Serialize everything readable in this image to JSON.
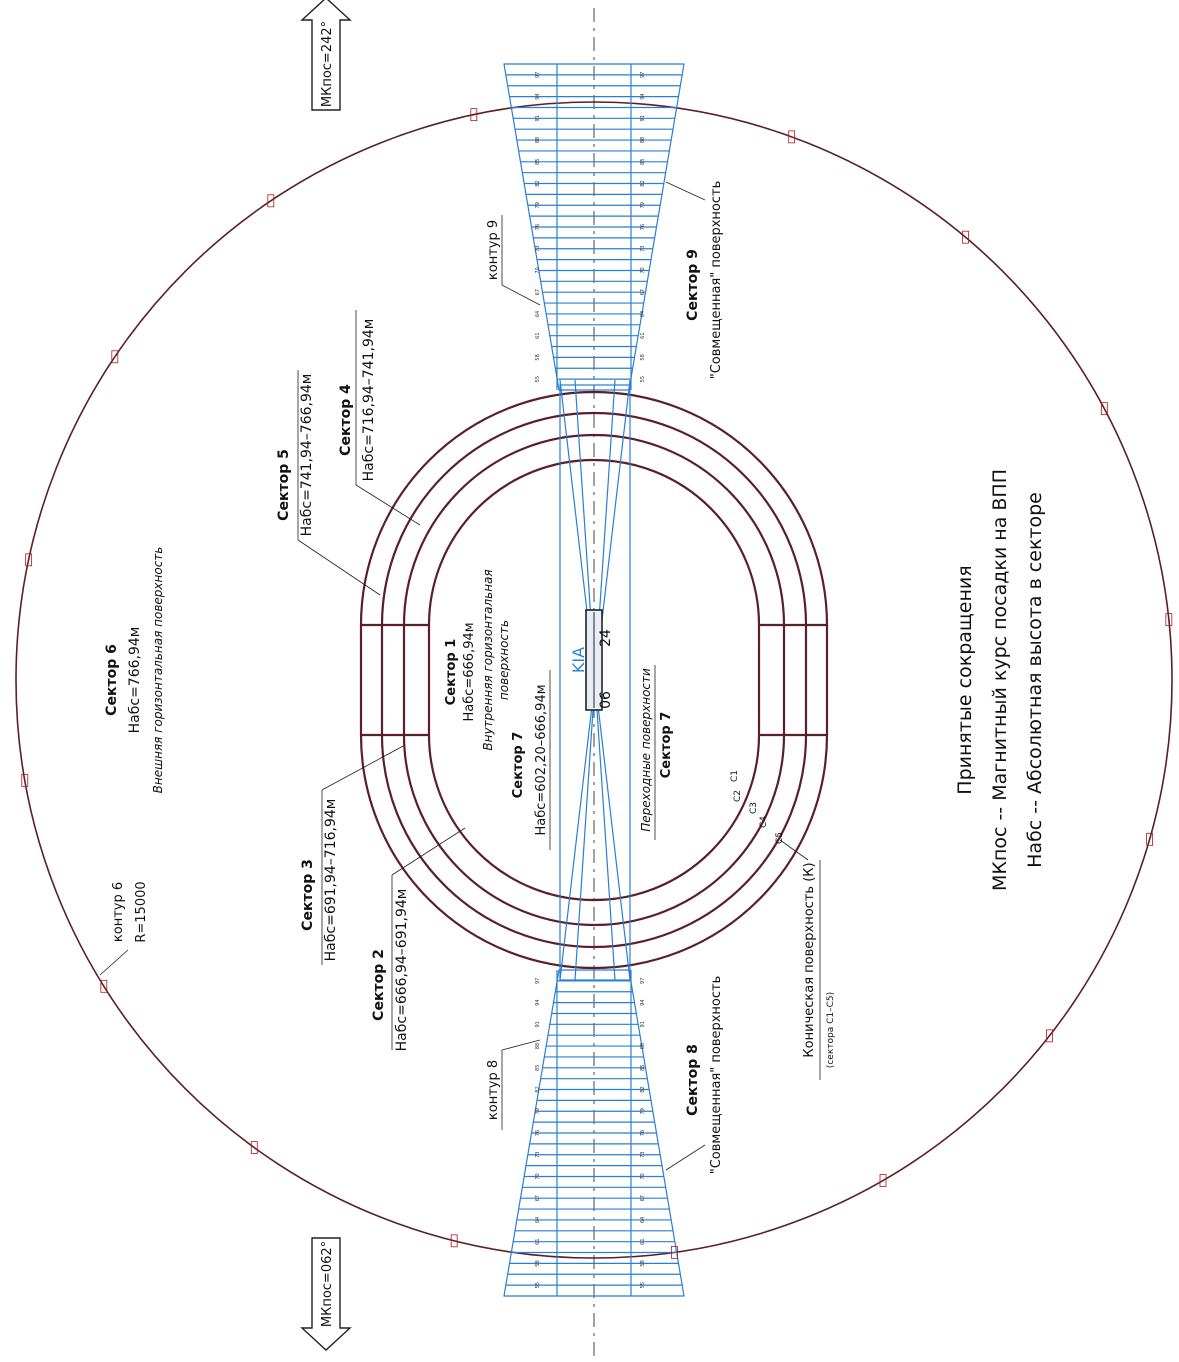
{
  "sectors": {
    "s1_title": "Сектор 1",
    "s1_h": "Набс=666,94м",
    "s1_desc_a": "Внутренняя горизонтальная",
    "s1_desc_b": "поверхность",
    "s2_title": "Сектор 2",
    "s2_h": "Набс=666,94–691,94м",
    "s3_title": "Сектор 3",
    "s3_h": "Набс=691,94–716,94м",
    "s4_title": "Сектор 4",
    "s4_h": "Набс=716,94–741,94м",
    "s5_title": "Сектор 5",
    "s5_h": "Набс=741,94–766,94м",
    "s6_title": "Сектор 6",
    "s6_h": "Набс=766,94м",
    "s6_desc": "Внешняя горизонтальная поверхность",
    "s7_title_a": "Сектор 7",
    "s7_h": "Набс=602,20–666,94м",
    "s7_title_b": "Сектор 7",
    "s7_desc": "Переходные поверхности",
    "s8_title": "Сектор 8",
    "s8_desc": "\"Совмещенная\" поверхность",
    "s9_title": "Сектор 9",
    "s9_desc": "\"Совмещенная\" поверхность"
  },
  "contours": {
    "c6": "контур 6",
    "c6_r": "R=15000",
    "c8": "контур 8",
    "c9": "контур 9"
  },
  "conical": {
    "label": "Коническая поверхность (К)",
    "sub": "(сектора С1–С5)",
    "marks": [
      "С1",
      "С2",
      "С3",
      "С4",
      "С5"
    ]
  },
  "runway": {
    "name": "KIA",
    "end_a": "24",
    "end_b": "06"
  },
  "headings": {
    "top": "МКпос=242°",
    "bottom": "МКпос=062°"
  },
  "legend": {
    "title": "Принятые сокращения",
    "line1": "МКпос -- Магнитный курс посадки на ВПП",
    "line2": "Набс -- Абсолютная высота в секторе"
  },
  "colors": {
    "outline": "#5a1f2a",
    "approach_blue": "#2a7fd4",
    "marker_red": "#b01818"
  },
  "approach_grid": {
    "top_cell_values": [
      "97",
      "94",
      "91",
      "88",
      "85",
      "82",
      "79",
      "76",
      "73",
      "70",
      "67",
      "64",
      "61",
      "58",
      "55"
    ],
    "bottom_cell_values": [
      "55",
      "58",
      "61",
      "64",
      "67",
      "70",
      "73",
      "76",
      "79",
      "82",
      "85",
      "88",
      "91",
      "94",
      "97"
    ]
  }
}
